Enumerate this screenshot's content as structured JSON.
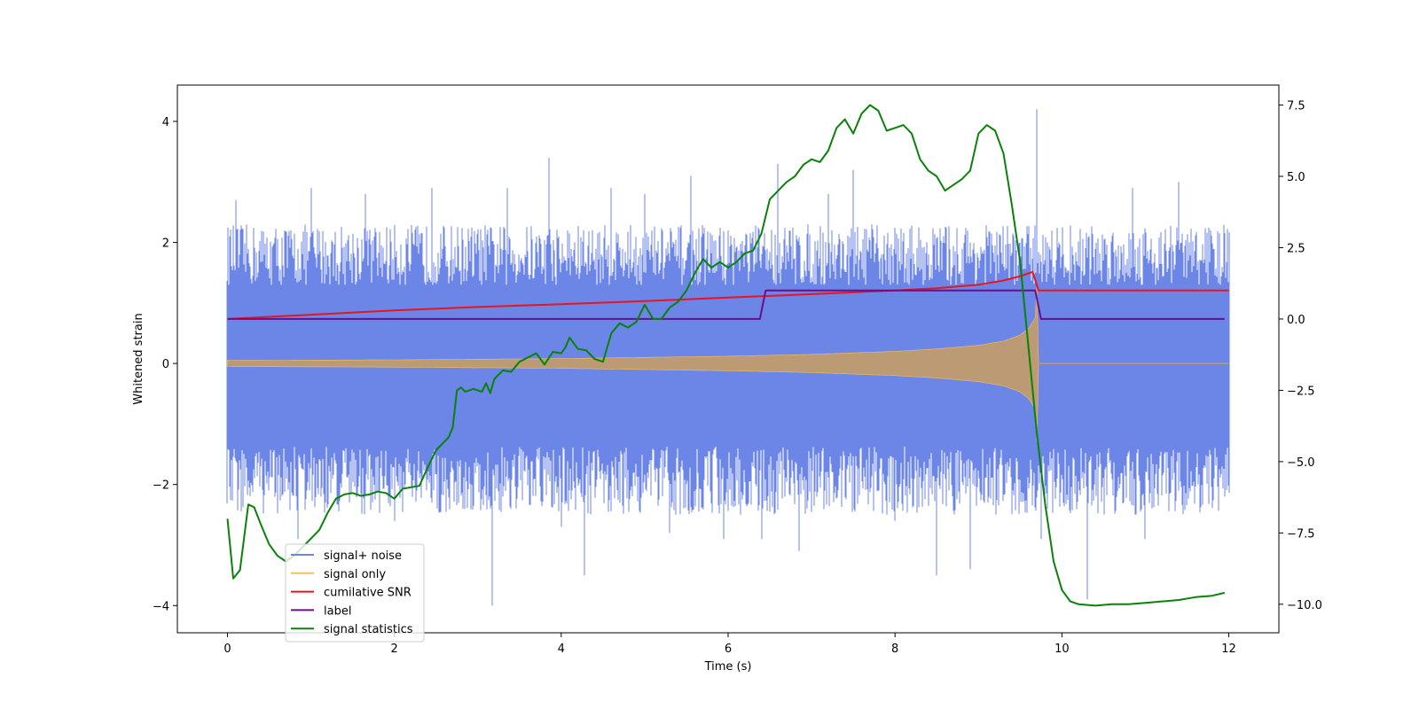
{
  "chart_data": {
    "type": "line",
    "title": "",
    "xlabel": "Time (s)",
    "ylabel": "Whitened strain",
    "y2label": "",
    "xlim": [
      -0.6,
      12.6
    ],
    "ylim": [
      -4.45,
      4.6
    ],
    "y2lim": [
      -11.0,
      8.2
    ],
    "xticks": [
      0,
      2,
      4,
      6,
      8,
      10,
      12
    ],
    "xtick_labels": [
      "0",
      "2",
      "4",
      "6",
      "8",
      "10",
      "12"
    ],
    "yticks": [
      -4,
      -2,
      0,
      2,
      4
    ],
    "ytick_labels": [
      "−4",
      "−2",
      "0",
      "2",
      "4"
    ],
    "y2ticks": [
      -10,
      -7.5,
      -5,
      -2.5,
      0,
      2.5,
      5,
      7.5
    ],
    "y2tick_labels": [
      "−10.0",
      "−7.5",
      "−5.0",
      "−2.5",
      "0.0",
      "2.5",
      "5.0",
      "7.5"
    ],
    "grid": false,
    "legend_position": "lower-left",
    "legend": [
      "signal+ noise",
      "signal only",
      "cumilative SNR",
      "label",
      "signal statistics"
    ],
    "series": [
      {
        "name": "signal+ noise",
        "axis": "left",
        "color": "#6b86e6",
        "kind": "noise-band",
        "x_range": [
          0,
          12
        ],
        "envelope_low": -2.5,
        "envelope_high": 2.3,
        "spikes": [
          {
            "x": 0.03,
            "y": 2.1
          },
          {
            "x": 0.1,
            "y": 2.7
          },
          {
            "x": 0.85,
            "y": -2.9
          },
          {
            "x": 1.0,
            "y": 2.9
          },
          {
            "x": 1.65,
            "y": 2.8
          },
          {
            "x": 2.0,
            "y": -2.6
          },
          {
            "x": 2.45,
            "y": 2.9
          },
          {
            "x": 3.17,
            "y": -4.0
          },
          {
            "x": 3.35,
            "y": 2.9
          },
          {
            "x": 3.85,
            "y": 3.4
          },
          {
            "x": 4.0,
            "y": -2.7
          },
          {
            "x": 4.28,
            "y": -3.5
          },
          {
            "x": 4.6,
            "y": 2.9
          },
          {
            "x": 5.0,
            "y": 2.8
          },
          {
            "x": 5.3,
            "y": -2.8
          },
          {
            "x": 5.55,
            "y": 3.1
          },
          {
            "x": 5.95,
            "y": -2.9
          },
          {
            "x": 6.4,
            "y": -2.9
          },
          {
            "x": 6.6,
            "y": 3.3
          },
          {
            "x": 6.85,
            "y": -3.1
          },
          {
            "x": 7.2,
            "y": 2.8
          },
          {
            "x": 7.5,
            "y": 3.2
          },
          {
            "x": 8.0,
            "y": -2.6
          },
          {
            "x": 8.5,
            "y": -3.5
          },
          {
            "x": 8.9,
            "y": -3.4
          },
          {
            "x": 9.7,
            "y": 4.2
          },
          {
            "x": 9.75,
            "y": -2.9
          },
          {
            "x": 10.3,
            "y": -3.9
          },
          {
            "x": 10.85,
            "y": 2.9
          },
          {
            "x": 11.0,
            "y": -2.9
          },
          {
            "x": 11.4,
            "y": 3.0
          },
          {
            "x": 11.95,
            "y": 2.2
          },
          {
            "x": 11.95,
            "y": -2.2
          }
        ]
      },
      {
        "name": "signal only",
        "axis": "left",
        "color": "#f5c061",
        "fill_color": "#bb9a74",
        "kind": "chirp-envelope",
        "x": [
          0,
          1,
          2,
          3,
          4,
          5,
          6,
          7,
          8,
          8.5,
          9,
          9.3,
          9.5,
          9.6,
          9.68,
          9.7,
          9.72,
          12
        ],
        "envelope": [
          0.05,
          0.055,
          0.06,
          0.07,
          0.08,
          0.1,
          0.12,
          0.15,
          0.2,
          0.24,
          0.3,
          0.37,
          0.47,
          0.58,
          0.75,
          1.3,
          0.0,
          0.0
        ]
      },
      {
        "name": "cumilative SNR",
        "axis": "right",
        "color": "#e8141e",
        "x": [
          0,
          1,
          2,
          3,
          4,
          5,
          6,
          7,
          8,
          8.5,
          9,
          9.3,
          9.5,
          9.65,
          9.72,
          12
        ],
        "y": [
          0.0,
          0.15,
          0.3,
          0.42,
          0.52,
          0.63,
          0.75,
          0.87,
          1.0,
          1.08,
          1.2,
          1.35,
          1.5,
          1.65,
          1.0,
          1.0
        ]
      },
      {
        "name": "label",
        "axis": "right",
        "color": "#6a0f8a",
        "x": [
          0,
          6.38,
          6.45,
          9.68,
          9.75,
          11.95
        ],
        "y": [
          0,
          0,
          1,
          1,
          0,
          0
        ]
      },
      {
        "name": "signal statistics",
        "axis": "right",
        "color": "#0a820a",
        "x": [
          0,
          0.07,
          0.15,
          0.25,
          0.32,
          0.4,
          0.5,
          0.6,
          0.7,
          0.8,
          0.9,
          1.0,
          1.1,
          1.2,
          1.3,
          1.4,
          1.5,
          1.6,
          1.7,
          1.8,
          1.9,
          2.0,
          2.1,
          2.2,
          2.3,
          2.4,
          2.5,
          2.6,
          2.65,
          2.7,
          2.75,
          2.8,
          2.85,
          2.9,
          2.95,
          3.0,
          3.05,
          3.1,
          3.15,
          3.2,
          3.3,
          3.4,
          3.5,
          3.6,
          3.7,
          3.8,
          3.9,
          4.0,
          4.05,
          4.1,
          4.2,
          4.3,
          4.4,
          4.5,
          4.6,
          4.7,
          4.8,
          4.9,
          5.0,
          5.1,
          5.2,
          5.3,
          5.4,
          5.5,
          5.6,
          5.7,
          5.8,
          5.9,
          6.0,
          6.1,
          6.2,
          6.3,
          6.4,
          6.5,
          6.6,
          6.7,
          6.8,
          6.9,
          7.0,
          7.1,
          7.2,
          7.3,
          7.4,
          7.5,
          7.6,
          7.7,
          7.8,
          7.9,
          8.0,
          8.1,
          8.2,
          8.3,
          8.4,
          8.5,
          8.6,
          8.7,
          8.8,
          8.9,
          9.0,
          9.1,
          9.2,
          9.3,
          9.4,
          9.5,
          9.6,
          9.7,
          9.8,
          9.9,
          10.0,
          10.1,
          10.2,
          10.4,
          10.6,
          10.8,
          11.0,
          11.2,
          11.4,
          11.6,
          11.8,
          11.95
        ],
        "y": [
          -7.0,
          -9.1,
          -8.8,
          -6.5,
          -6.6,
          -7.2,
          -7.9,
          -8.3,
          -8.5,
          -8.3,
          -8.0,
          -7.7,
          -7.4,
          -6.8,
          -6.3,
          -6.15,
          -6.1,
          -6.2,
          -6.15,
          -6.05,
          -6.1,
          -6.3,
          -5.95,
          -5.9,
          -5.85,
          -5.2,
          -4.6,
          -4.3,
          -4.15,
          -3.8,
          -2.5,
          -2.4,
          -2.55,
          -2.5,
          -2.45,
          -2.5,
          -2.55,
          -2.25,
          -2.6,
          -2.1,
          -1.8,
          -1.85,
          -1.5,
          -1.35,
          -1.2,
          -1.6,
          -1.15,
          -1.2,
          -1.0,
          -0.65,
          -1.05,
          -1.1,
          -1.4,
          -1.5,
          -0.5,
          -0.15,
          -0.3,
          -0.1,
          0.5,
          0.0,
          0.0,
          0.4,
          0.6,
          1.0,
          1.6,
          2.1,
          1.8,
          2.0,
          1.8,
          2.0,
          2.3,
          2.4,
          3.0,
          4.2,
          4.5,
          4.8,
          5.0,
          5.4,
          5.6,
          5.5,
          5.9,
          6.7,
          7.0,
          6.5,
          7.2,
          7.5,
          7.3,
          6.6,
          6.7,
          6.8,
          6.5,
          5.6,
          5.2,
          5.0,
          4.5,
          4.7,
          4.9,
          5.2,
          6.5,
          6.8,
          6.6,
          5.8,
          4.0,
          2.0,
          -1.0,
          -4.0,
          -6.5,
          -8.5,
          -9.5,
          -9.9,
          -10.0,
          -10.05,
          -10.0,
          -10.0,
          -9.95,
          -9.9,
          -9.85,
          -9.75,
          -9.7,
          -9.6
        ]
      }
    ]
  }
}
